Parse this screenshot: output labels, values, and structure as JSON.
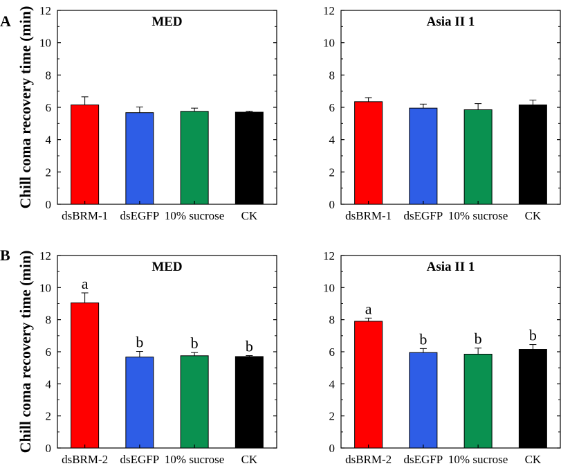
{
  "figure": {
    "y_label": "Chill coma recovery time (min)"
  },
  "panels": [
    {
      "row": 0,
      "label": "A"
    },
    {
      "row": 1,
      "label": "B"
    }
  ],
  "chart_data": [
    {
      "type": "bar",
      "row": 0,
      "col": 0,
      "title": "MED",
      "categories": [
        "dsBRM-1",
        "dsEGFP",
        "10% sucrose",
        "CK"
      ],
      "values": [
        6.15,
        5.67,
        5.75,
        5.7
      ],
      "errors": [
        0.5,
        0.35,
        0.2,
        0.06
      ],
      "colors": [
        "#ff0000",
        "#2e5de6",
        "#0a9150",
        "#000000"
      ],
      "letters": null,
      "ylim": [
        0,
        12
      ],
      "yticks": [
        0,
        2,
        4,
        6,
        8,
        10,
        12
      ],
      "xlabel": "",
      "ylabel": "Chill coma recovery time (min)"
    },
    {
      "type": "bar",
      "row": 0,
      "col": 1,
      "title": "Asia II 1",
      "categories": [
        "dsBRM-1",
        "dsEGFP",
        "10% sucrose",
        "CK"
      ],
      "values": [
        6.35,
        5.95,
        5.85,
        6.15
      ],
      "errors": [
        0.25,
        0.25,
        0.38,
        0.3
      ],
      "colors": [
        "#ff0000",
        "#2e5de6",
        "#0a9150",
        "#000000"
      ],
      "letters": null,
      "ylim": [
        0,
        12
      ],
      "yticks": [
        0,
        2,
        4,
        6,
        8,
        10,
        12
      ],
      "xlabel": "",
      "ylabel": ""
    },
    {
      "type": "bar",
      "row": 1,
      "col": 0,
      "title": "MED",
      "categories": [
        "dsBRM-2",
        "dsEGFP",
        "10% sucrose",
        "CK"
      ],
      "values": [
        9.05,
        5.67,
        5.75,
        5.7
      ],
      "errors": [
        0.62,
        0.35,
        0.2,
        0.06
      ],
      "colors": [
        "#ff0000",
        "#2e5de6",
        "#0a9150",
        "#000000"
      ],
      "letters": [
        "a",
        "b",
        "b",
        "b"
      ],
      "ylim": [
        0,
        12
      ],
      "yticks": [
        0,
        2,
        4,
        6,
        8,
        10,
        12
      ],
      "xlabel": "",
      "ylabel": "Chill coma recovery time (min)"
    },
    {
      "type": "bar",
      "row": 1,
      "col": 1,
      "title": "Asia II 1",
      "categories": [
        "dsBRM-2",
        "dsEGFP",
        "10% sucrose",
        "CK"
      ],
      "values": [
        7.9,
        5.95,
        5.85,
        6.15
      ],
      "errors": [
        0.2,
        0.25,
        0.38,
        0.3
      ],
      "colors": [
        "#ff0000",
        "#2e5de6",
        "#0a9150",
        "#000000"
      ],
      "letters": [
        "a",
        "b",
        "b",
        "b"
      ],
      "ylim": [
        0,
        12
      ],
      "yticks": [
        0,
        2,
        4,
        6,
        8,
        10,
        12
      ],
      "xlabel": "",
      "ylabel": ""
    }
  ]
}
